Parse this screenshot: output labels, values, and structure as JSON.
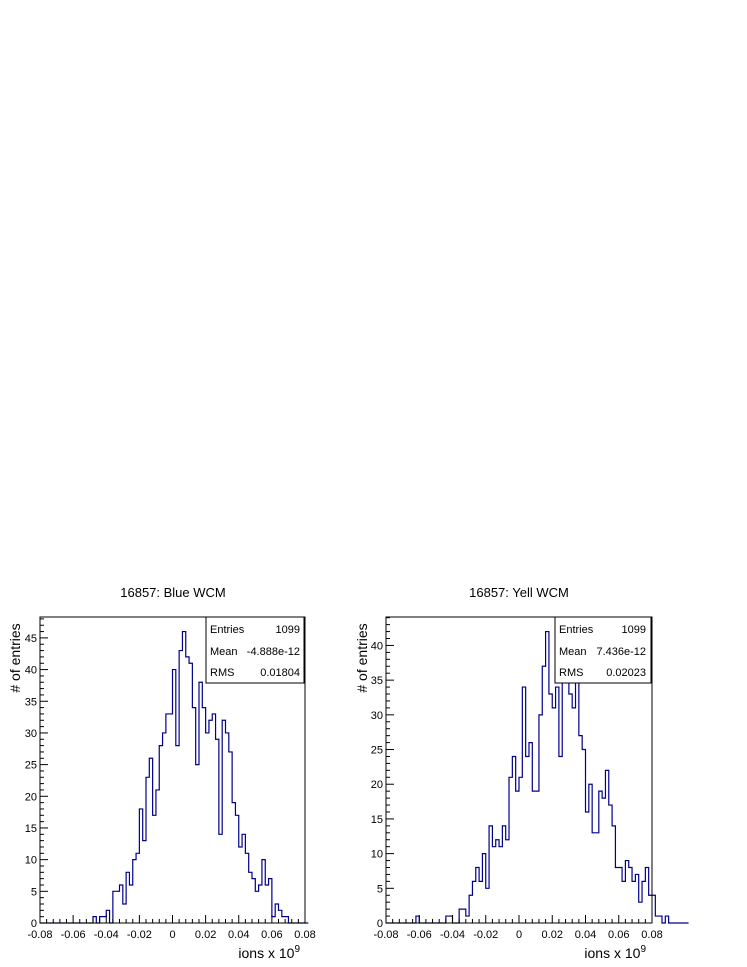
{
  "chart_data": [
    {
      "type": "bar",
      "title": "16857: Blue WCM",
      "xlabel": "ions x 10",
      "xlabel_exponent": "9",
      "ylabel": "# of entries",
      "xlim": [
        -0.08,
        0.08
      ],
      "ylim": [
        0,
        48.3
      ],
      "x_ticks": [
        "-0.08",
        "-0.06",
        "-0.04",
        "-0.02",
        "0",
        "0.02",
        "0.04",
        "0.06",
        "0.08"
      ],
      "y_ticks": [
        "0",
        "5",
        "10",
        "15",
        "20",
        "25",
        "30",
        "35",
        "40",
        "45"
      ],
      "line_color": "#00008b",
      "bin_width": 0.002,
      "bin_start": -0.08,
      "values": [
        0,
        0,
        0,
        0,
        0,
        0,
        0,
        0,
        0,
        0,
        0,
        0,
        0,
        0,
        0,
        0,
        1,
        0,
        1,
        1,
        2,
        0,
        5,
        5,
        6,
        3,
        8,
        6,
        10,
        11,
        18,
        13,
        23,
        26,
        17,
        21,
        28,
        30,
        33,
        33,
        40,
        28,
        43,
        46,
        42,
        41,
        34,
        25,
        38,
        34,
        30,
        32,
        33,
        29,
        14,
        32,
        30,
        27,
        19,
        17,
        12,
        14,
        11,
        8,
        7,
        5,
        6,
        10,
        6,
        7,
        1,
        3,
        2,
        1,
        1,
        0,
        0,
        0,
        0,
        0,
        0
      ],
      "stats": {
        "entries_label": "Entries",
        "entries": "1099",
        "mean_label": "Mean",
        "mean": "-4.888e-12",
        "rms_label": "RMS",
        "rms": "0.01804"
      }
    },
    {
      "type": "bar",
      "title": "16857: Yell WCM",
      "xlabel": "ions x 10",
      "xlabel_exponent": "9",
      "ylabel": "# of entries",
      "xlim": [
        -0.08,
        0.08
      ],
      "ylim": [
        0,
        44.1
      ],
      "x_ticks": [
        "-0.08",
        "-0.06",
        "-0.04",
        "-0.02",
        "0",
        "0.02",
        "0.04",
        "0.06",
        "0.08"
      ],
      "y_ticks": [
        "0",
        "5",
        "10",
        "15",
        "20",
        "25",
        "30",
        "35",
        "40"
      ],
      "line_color": "#00008b",
      "bin_width": 0.002,
      "bin_start": -0.08,
      "values": [
        0,
        0,
        0,
        0,
        0,
        0,
        0,
        0,
        0,
        1,
        0,
        0,
        0,
        0,
        0,
        0,
        0,
        0,
        1,
        1,
        0,
        0,
        2,
        2,
        1,
        4,
        6,
        8,
        6,
        10,
        5,
        14,
        11,
        12,
        11,
        14,
        12,
        21,
        24,
        19,
        21,
        34,
        24,
        26,
        19,
        19,
        30,
        37,
        42,
        33,
        31,
        34,
        24,
        37,
        35,
        33,
        31,
        37,
        27,
        25,
        16,
        20,
        13,
        13,
        19,
        18,
        22,
        17,
        14,
        8,
        8,
        6,
        9,
        8,
        6,
        7,
        3,
        6,
        8,
        4,
        4,
        1,
        1,
        0,
        1,
        0,
        0,
        0,
        0,
        0,
        0
      ],
      "stats": {
        "entries_label": "Entries",
        "entries": "1099",
        "mean_label": "Mean",
        "mean": "7.436e-12",
        "rms_label": "RMS",
        "rms": "0.02023"
      }
    }
  ]
}
